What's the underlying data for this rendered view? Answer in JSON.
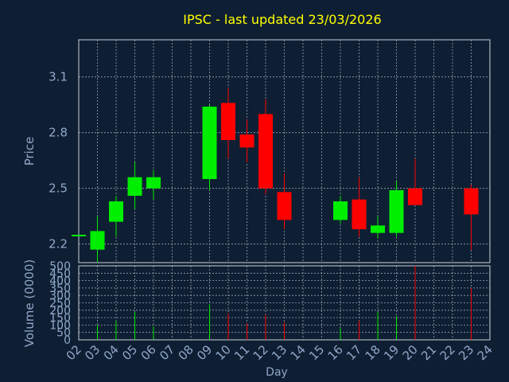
{
  "title": "IPSC - last updated 23/03/2026",
  "colors": {
    "background": "#0f1f33",
    "plot_background": "#0f1f33",
    "grid": "#b8c4d4",
    "axis_text": "#8fa8c8",
    "title": "#ffff00",
    "up": "#00ee00",
    "down": "#ff0000",
    "axis_line": "#c8d0da"
  },
  "chart_data": [
    {
      "type": "candlestick",
      "ylabel": "Price",
      "ylim": [
        2.1,
        3.3
      ],
      "yticks": [
        2.2,
        2.5,
        2.8,
        3.1
      ],
      "ytick_labels": [
        "2.2",
        "2.5",
        "2.8",
        "3.1"
      ],
      "grid": true,
      "candles": [
        {
          "day": "02",
          "open": 2.25,
          "close": 2.25,
          "high": 2.25,
          "low": 2.25
        },
        {
          "day": "03",
          "open": 2.17,
          "close": 2.27,
          "high": 2.35,
          "low": 2.1
        },
        {
          "day": "04",
          "open": 2.32,
          "close": 2.43,
          "high": 2.46,
          "low": 2.24
        },
        {
          "day": "05",
          "open": 2.46,
          "close": 2.56,
          "high": 2.64,
          "low": 2.39
        },
        {
          "day": "06",
          "open": 2.5,
          "close": 2.56,
          "high": 2.6,
          "low": 2.44
        },
        {
          "day": "09",
          "open": 2.55,
          "close": 2.94,
          "high": 2.95,
          "low": 2.49
        },
        {
          "day": "10",
          "open": 2.96,
          "close": 2.76,
          "high": 3.04,
          "low": 2.66
        },
        {
          "day": "11",
          "open": 2.79,
          "close": 2.72,
          "high": 2.87,
          "low": 2.64
        },
        {
          "day": "12",
          "open": 2.9,
          "close": 2.5,
          "high": 2.98,
          "low": 2.47
        },
        {
          "day": "13",
          "open": 2.48,
          "close": 2.33,
          "high": 2.58,
          "low": 2.28
        },
        {
          "day": "16",
          "open": 2.33,
          "close": 2.43,
          "high": 2.46,
          "low": 2.31
        },
        {
          "day": "17",
          "open": 2.44,
          "close": 2.28,
          "high": 2.56,
          "low": 2.24
        },
        {
          "day": "18",
          "open": 2.26,
          "close": 2.3,
          "high": 2.35,
          "low": 2.23
        },
        {
          "day": "19",
          "open": 2.26,
          "close": 2.49,
          "high": 2.54,
          "low": 2.24
        },
        {
          "day": "20",
          "open": 2.5,
          "close": 2.41,
          "high": 2.66,
          "low": 2.41
        },
        {
          "day": "23",
          "open": 2.5,
          "close": 2.36,
          "high": 2.52,
          "low": 2.17
        }
      ]
    },
    {
      "type": "bar",
      "ylabel": "Volume (0000)",
      "xlabel": "Day",
      "ylim": [
        0,
        500
      ],
      "yticks": [
        0,
        50,
        100,
        150,
        200,
        250,
        300,
        350,
        400,
        450,
        500
      ],
      "ytick_labels": [
        "0",
        "50",
        "100",
        "150",
        "200",
        "250",
        "300",
        "350",
        "400",
        "450",
        "500"
      ],
      "categories": [
        "02",
        "03",
        "04",
        "05",
        "06",
        "07",
        "08",
        "09",
        "10",
        "11",
        "12",
        "13",
        "14",
        "15",
        "16",
        "17",
        "18",
        "19",
        "20",
        "21",
        "22",
        "23",
        "24"
      ],
      "values": [
        0,
        100,
        130,
        190,
        90,
        0,
        0,
        240,
        180,
        110,
        170,
        120,
        0,
        0,
        80,
        130,
        190,
        160,
        500,
        0,
        0,
        350,
        0
      ],
      "grid": true
    }
  ]
}
